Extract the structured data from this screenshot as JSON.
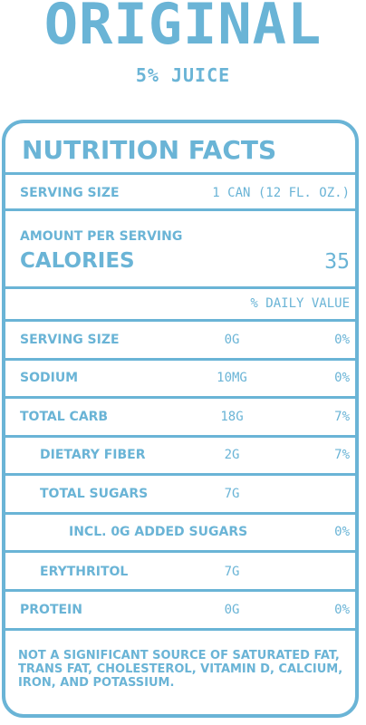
{
  "header": {
    "product": "ORIGINAL",
    "subtitle": "5% JUICE"
  },
  "panel": {
    "title": "NUTRITION FACTS",
    "serving_size_label": "SERVING SIZE",
    "serving_size_value": "1 CAN (12 FL. OZ.)",
    "amount_per_serving": "AMOUNT PER SERVING",
    "calories_label": "CALORIES",
    "calories_value": "35",
    "daily_value_header": "% DAILY VALUE",
    "rows": [
      {
        "label": "SERVING SIZE",
        "amount": "0G",
        "dv": "0%"
      },
      {
        "label": "SODIUM",
        "amount": "10MG",
        "dv": "0%"
      },
      {
        "label": "TOTAL CARB",
        "amount": "18G",
        "dv": "7%"
      },
      {
        "label": "DIETARY FIBER",
        "amount": "2G",
        "dv": "7%"
      },
      {
        "label": "TOTAL SUGARS",
        "amount": "7G",
        "dv": ""
      },
      {
        "label": "INCL. 0G ADDED SUGARS",
        "amount": "",
        "dv": "0%"
      },
      {
        "label": "ERYTHRITOL",
        "amount": "7G",
        "dv": ""
      },
      {
        "label": "PROTEIN",
        "amount": "0G",
        "dv": "0%"
      }
    ],
    "footer": "NOT A SIGNIFICANT SOURCE OF SATURATED FAT, TRANS FAT, CHOLESTEROL, VITAMIN D, CALCIUM, IRON, AND POTASSIUM."
  },
  "colors": {
    "accent": "#6ab4d6",
    "background": "#ffffff"
  }
}
